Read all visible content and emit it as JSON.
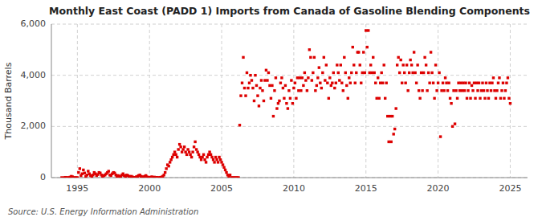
{
  "chart_data": {
    "type": "scatter",
    "title": "Monthly East Coast (PADD 1) Imports from Canada of Gasoline Blending Components",
    "y_label": "Thousand Barrels",
    "source": "Source: U.S. Energy Information Administration",
    "color": "#dd0000",
    "marker": "square",
    "grid": true,
    "xlim": [
      1993.2,
      2026.2
    ],
    "xticks": [
      1995,
      2000,
      2005,
      2010,
      2015,
      2020,
      2025
    ],
    "ylim": [
      0,
      6000
    ],
    "yticks": [
      0,
      {
        "value": 2000,
        "label": "2,000"
      },
      {
        "value": 4000,
        "label": "4,000"
      },
      {
        "value": 6000,
        "label": "6,000"
      }
    ],
    "x": [
      1993.917,
      1994.083,
      1994.167,
      1994.25,
      1994.333,
      1994.417,
      1994.5,
      1994.583,
      1994.667,
      1994.75,
      1994.833,
      1994.917,
      1995,
      1995.083,
      1995.167,
      1995.25,
      1995.333,
      1995.417,
      1995.5,
      1995.583,
      1995.667,
      1995.75,
      1995.833,
      1995.917,
      1996,
      1996.083,
      1996.167,
      1996.25,
      1996.333,
      1996.417,
      1996.5,
      1996.583,
      1996.667,
      1996.75,
      1996.833,
      1996.917,
      1997,
      1997.083,
      1997.167,
      1997.25,
      1997.333,
      1997.417,
      1997.5,
      1997.583,
      1997.667,
      1997.75,
      1997.833,
      1997.917,
      1998,
      1998.083,
      1998.167,
      1998.25,
      1998.333,
      1998.417,
      1998.5,
      1998.583,
      1998.667,
      1998.75,
      1998.833,
      1998.917,
      1999,
      1999.083,
      1999.167,
      1999.25,
      1999.333,
      1999.417,
      1999.5,
      1999.583,
      1999.667,
      1999.75,
      1999.833,
      1999.917,
      2000,
      2000.083,
      2000.167,
      2000.25,
      2000.333,
      2000.417,
      2000.5,
      2000.583,
      2000.667,
      2000.75,
      2000.833,
      2000.917,
      2001,
      2001.083,
      2001.167,
      2001.25,
      2001.333,
      2001.417,
      2001.5,
      2001.583,
      2001.667,
      2001.75,
      2001.833,
      2001.917,
      2002,
      2002.083,
      2002.167,
      2002.25,
      2002.333,
      2002.417,
      2002.5,
      2002.583,
      2002.667,
      2002.75,
      2002.833,
      2002.917,
      2003,
      2003.083,
      2003.167,
      2003.25,
      2003.333,
      2003.417,
      2003.5,
      2003.583,
      2003.667,
      2003.75,
      2003.833,
      2003.917,
      2004,
      2004.083,
      2004.167,
      2004.25,
      2004.333,
      2004.417,
      2004.5,
      2004.583,
      2004.667,
      2004.75,
      2004.833,
      2004.917,
      2005,
      2005.083,
      2005.167,
      2005.25,
      2005.333,
      2005.417,
      2005.5,
      2005.583,
      2005.667,
      2005.75,
      2005.833,
      2005.917,
      2006,
      2006.083,
      2006.167,
      2006.25,
      2006.333,
      2006.417,
      2006.5,
      2006.583,
      2006.667,
      2006.75,
      2006.833,
      2006.917,
      2007,
      2007.083,
      2007.167,
      2007.25,
      2007.333,
      2007.417,
      2007.5,
      2007.583,
      2007.667,
      2007.75,
      2007.833,
      2007.917,
      2008,
      2008.083,
      2008.167,
      2008.25,
      2008.333,
      2008.417,
      2008.5,
      2008.583,
      2008.667,
      2008.75,
      2008.833,
      2008.917,
      2009,
      2009.083,
      2009.167,
      2009.25,
      2009.333,
      2009.417,
      2009.5,
      2009.583,
      2009.667,
      2009.75,
      2009.833,
      2009.917,
      2010,
      2010.083,
      2010.167,
      2010.25,
      2010.333,
      2010.417,
      2010.5,
      2010.583,
      2010.667,
      2010.75,
      2010.833,
      2010.917,
      2011,
      2011.083,
      2011.167,
      2011.25,
      2011.333,
      2011.417,
      2011.5,
      2011.583,
      2011.667,
      2011.75,
      2011.833,
      2011.917,
      2012,
      2012.083,
      2012.167,
      2012.25,
      2012.333,
      2012.417,
      2012.5,
      2012.583,
      2012.667,
      2012.75,
      2012.833,
      2012.917,
      2013,
      2013.083,
      2013.167,
      2013.25,
      2013.333,
      2013.417,
      2013.5,
      2013.583,
      2013.667,
      2013.75,
      2013.833,
      2013.917,
      2014,
      2014.083,
      2014.167,
      2014.25,
      2014.333,
      2014.417,
      2014.5,
      2014.583,
      2014.667,
      2014.75,
      2014.833,
      2014.917,
      2015,
      2015.083,
      2015.167,
      2015.25,
      2015.333,
      2015.417,
      2015.5,
      2015.583,
      2015.667,
      2015.75,
      2015.833,
      2015.917,
      2016,
      2016.083,
      2016.167,
      2016.25,
      2016.333,
      2016.417,
      2016.5,
      2016.583,
      2016.667,
      2016.75,
      2016.833,
      2016.917,
      2017,
      2017.083,
      2017.167,
      2017.25,
      2017.333,
      2017.417,
      2017.5,
      2017.583,
      2017.667,
      2017.75,
      2017.833,
      2017.917,
      2018,
      2018.083,
      2018.167,
      2018.25,
      2018.333,
      2018.417,
      2018.5,
      2018.583,
      2018.667,
      2018.75,
      2018.833,
      2018.917,
      2019,
      2019.083,
      2019.167,
      2019.25,
      2019.333,
      2019.417,
      2019.5,
      2019.583,
      2019.667,
      2019.75,
      2019.833,
      2019.917,
      2020,
      2020.083,
      2020.167,
      2020.25,
      2020.333,
      2020.417,
      2020.5,
      2020.583,
      2020.667,
      2020.75,
      2020.833,
      2020.917,
      2021,
      2021.083,
      2021.167,
      2021.25,
      2021.333,
      2021.417,
      2021.5,
      2021.583,
      2021.667,
      2021.75,
      2021.833,
      2021.917,
      2022,
      2022.083,
      2022.167,
      2022.25,
      2022.333,
      2022.417,
      2022.5,
      2022.583,
      2022.667,
      2022.75,
      2022.833,
      2022.917,
      2023,
      2023.083,
      2023.167,
      2023.25,
      2023.333,
      2023.417,
      2023.5,
      2023.583,
      2023.667,
      2023.75,
      2023.833,
      2023.917,
      2024,
      2024.083,
      2024.167,
      2024.25,
      2024.333,
      2024.417,
      2024.5,
      2024.583,
      2024.667,
      2024.75,
      2024.833,
      2024.917,
      2025
    ],
    "values": [
      0,
      0,
      10,
      0,
      0,
      0,
      20,
      50,
      30,
      0,
      0,
      0,
      0,
      200,
      350,
      80,
      150,
      300,
      180,
      50,
      100,
      250,
      150,
      80,
      50,
      100,
      200,
      150,
      80,
      120,
      200,
      180,
      100,
      50,
      80,
      100,
      150,
      200,
      250,
      100,
      80,
      150,
      200,
      180,
      100,
      50,
      80,
      30,
      50,
      100,
      150,
      80,
      50,
      100,
      80,
      50,
      30,
      50,
      20,
      10,
      0,
      30,
      50,
      80,
      100,
      50,
      30,
      20,
      50,
      80,
      30,
      10,
      0,
      20,
      30,
      10,
      20,
      0,
      10,
      0,
      0,
      10,
      20,
      50,
      100,
      200,
      350,
      500,
      450,
      600,
      700,
      800,
      900,
      1000,
      900,
      800,
      1100,
      1300,
      1200,
      1000,
      1100,
      1200,
      1000,
      900,
      1100,
      1000,
      900,
      800,
      1000,
      1200,
      1400,
      1100,
      1000,
      900,
      800,
      700,
      800,
      900,
      700,
      600,
      800,
      900,
      1000,
      900,
      800,
      700,
      600,
      800,
      700,
      600,
      800,
      700,
      600,
      500,
      400,
      300,
      200,
      100,
      50,
      100,
      0,
      0,
      0,
      0,
      0,
      0,
      0,
      2050,
      3200,
      3700,
      4700,
      3500,
      3200,
      4100,
      3500,
      3700,
      4000,
      3800,
      3500,
      3000,
      4000,
      3600,
      3200,
      2800,
      3500,
      3800,
      3400,
      3000,
      3800,
      4200,
      3800,
      4100,
      3600,
      3100,
      3600,
      2400,
      3400,
      3900,
      2700,
      2900,
      3000,
      3700,
      3900,
      3500,
      3100,
      3600,
      2900,
      2700,
      3400,
      3100,
      3800,
      2900,
      3500,
      3700,
      3100,
      3900,
      3400,
      3900,
      3400,
      3900,
      3600,
      4100,
      3800,
      3400,
      3900,
      5000,
      4700,
      3800,
      4100,
      4700,
      3400,
      3600,
      3900,
      4300,
      3700,
      3500,
      4100,
      4700,
      3800,
      4400,
      3700,
      3100,
      3900,
      3600,
      3700,
      4100,
      3500,
      3700,
      4400,
      4100,
      3800,
      4400,
      3700,
      3400,
      4700,
      4100,
      3600,
      3100,
      3900,
      3700,
      4100,
      5100,
      4400,
      3700,
      4100,
      4900,
      4900,
      4400,
      3700,
      4100,
      4900,
      4100,
      5750,
      5100,
      5750,
      4100,
      4400,
      4100,
      4700,
      4100,
      3700,
      3100,
      3900,
      3100,
      3700,
      4100,
      3700,
      4400,
      3100,
      3700,
      2400,
      1400,
      2400,
      1400,
      2400,
      1700,
      1900,
      2700,
      4400,
      4700,
      4100,
      4600,
      3700,
      4400,
      4100,
      3700,
      4400,
      3400,
      4100,
      4600,
      4400,
      4100,
      4900,
      4100,
      3700,
      4400,
      3400,
      3100,
      4100,
      3400,
      4100,
      4700,
      4400,
      3400,
      4100,
      3700,
      4900,
      4100,
      3700,
      3100,
      4400,
      3400,
      3700,
      4100,
      1600,
      3400,
      3700,
      3400,
      3900,
      3700,
      3400,
      3700,
      3100,
      2900,
      2000,
      3400,
      2100,
      3400,
      3100,
      3700,
      3400,
      3700,
      3400,
      3700,
      3400,
      3700,
      3100,
      3400,
      3700,
      3100,
      3600,
      3400,
      3700,
      3100,
      3700,
      3400,
      3700,
      3100,
      3400,
      3700,
      3400,
      3100,
      3700,
      3400,
      3100,
      3700,
      3400,
      3700,
      3900,
      3400,
      3100,
      3400,
      3700,
      3900,
      3100,
      3400,
      3700,
      3100,
      3400,
      3700,
      3900,
      3100,
      2900
    ]
  }
}
